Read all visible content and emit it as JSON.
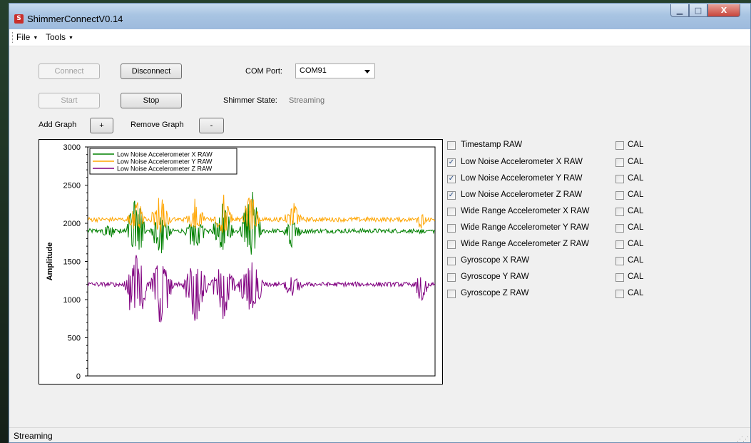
{
  "window": {
    "title": "ShimmerConnectV0.14",
    "icon_letter": "S",
    "min_glyph": "▁",
    "max_glyph": "□",
    "close_glyph": "X"
  },
  "menu": [
    {
      "label": "File"
    },
    {
      "label": "Tools"
    }
  ],
  "controls": {
    "connect_label": "Connect",
    "disconnect_label": "Disconnect",
    "start_label": "Start",
    "stop_label": "Stop",
    "com_port_label": "COM Port:",
    "com_port_value": "COM91",
    "shimmer_state_label": "Shimmer State:",
    "shimmer_state_value": "Streaming",
    "add_graph_label": "Add Graph",
    "add_graph_button": "+",
    "remove_graph_label": "Remove Graph",
    "remove_graph_button": "-"
  },
  "signals": [
    {
      "label": "Timestamp RAW",
      "checked": false,
      "cal": false
    },
    {
      "label": "Low Noise Accelerometer X RAW",
      "checked": true,
      "cal": false
    },
    {
      "label": "Low Noise Accelerometer Y RAW",
      "checked": true,
      "cal": false
    },
    {
      "label": "Low Noise Accelerometer Z RAW",
      "checked": true,
      "cal": false
    },
    {
      "label": "Wide Range Accelerometer X RAW",
      "checked": false,
      "cal": false
    },
    {
      "label": "Wide Range Accelerometer Y RAW",
      "checked": false,
      "cal": false
    },
    {
      "label": "Wide Range Accelerometer Z RAW",
      "checked": false,
      "cal": false
    },
    {
      "label": "Gyroscope X RAW",
      "checked": false,
      "cal": false
    },
    {
      "label": "Gyroscope Y RAW",
      "checked": false,
      "cal": false
    },
    {
      "label": "Gyroscope Z RAW",
      "checked": false,
      "cal": false
    }
  ],
  "cal_label": "CAL",
  "check_glyph": "✓",
  "status": {
    "text": "Streaming"
  },
  "chart_data": {
    "type": "line",
    "ylabel": "Amplitude",
    "ylim": [
      0,
      3000
    ],
    "yticks": [
      0,
      500,
      1000,
      1500,
      2000,
      2500,
      3000
    ],
    "x_samples": 480,
    "legend_placement": "top-left",
    "series": [
      {
        "name": "Low Noise Accelerometer X RAW",
        "color": "#008000",
        "baseline": 1900,
        "events": [
          [
            0.06,
            1750,
            60
          ],
          [
            0.14,
            2600,
            60
          ],
          [
            0.21,
            1550,
            70
          ],
          [
            0.31,
            1600,
            70
          ],
          [
            0.39,
            2400,
            70
          ],
          [
            0.47,
            2500,
            70
          ],
          [
            0.59,
            1650,
            60
          ],
          [
            0.96,
            1850,
            40
          ]
        ]
      },
      {
        "name": "Low Noise Accelerometer Y RAW",
        "color": "#ffa500",
        "baseline": 2050,
        "events": [
          [
            0.14,
            2350,
            60
          ],
          [
            0.21,
            2400,
            70
          ],
          [
            0.31,
            2350,
            60
          ],
          [
            0.39,
            2450,
            60
          ],
          [
            0.47,
            2450,
            60
          ],
          [
            0.59,
            2300,
            60
          ],
          [
            0.96,
            1900,
            40
          ]
        ]
      },
      {
        "name": "Low Noise Accelerometer Z RAW",
        "color": "#800080",
        "baseline": 1200,
        "events": [
          [
            0.14,
            550,
            80
          ],
          [
            0.21,
            600,
            80
          ],
          [
            0.31,
            650,
            80
          ],
          [
            0.39,
            700,
            80
          ],
          [
            0.47,
            650,
            80
          ],
          [
            0.59,
            1000,
            70
          ],
          [
            0.96,
            950,
            50
          ]
        ]
      }
    ]
  }
}
